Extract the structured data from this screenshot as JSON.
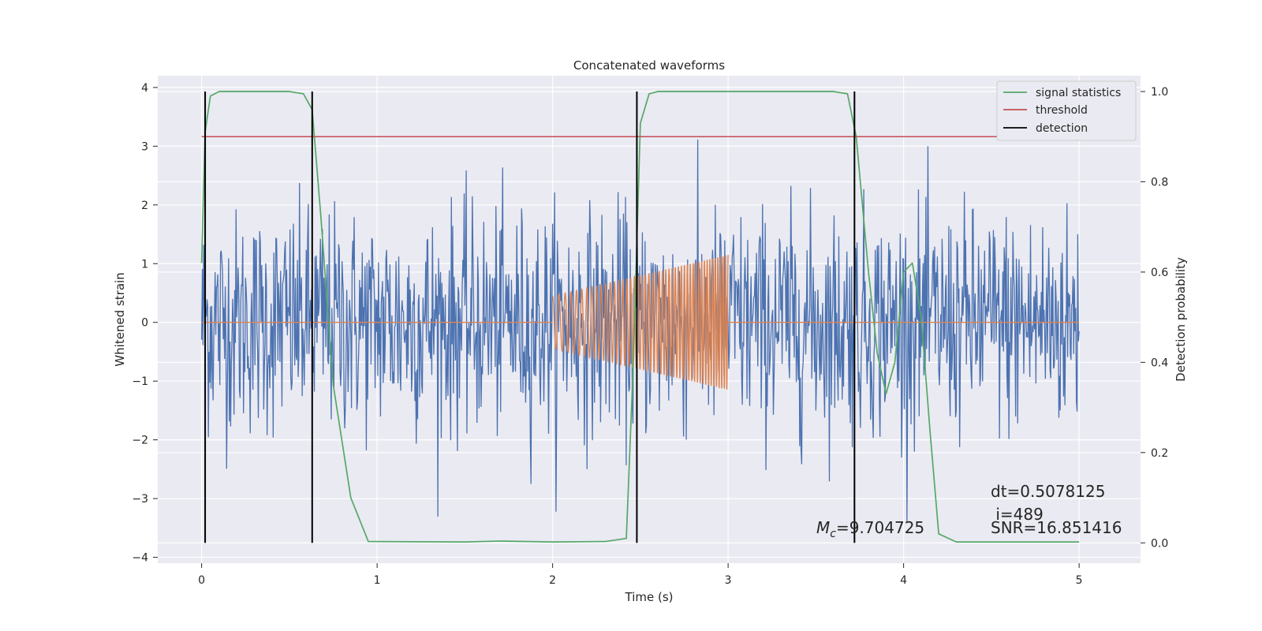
{
  "chart_data": {
    "type": "line",
    "title": "Concatenated waveforms",
    "xlabel": "Time (s)",
    "ylabel": "Whitened strain",
    "y2label": "Detection probability",
    "xlim": [
      -0.25,
      5.35
    ],
    "ylim": [
      -4.1,
      4.2
    ],
    "y2lim": [
      -0.045,
      1.035
    ],
    "x_ticks": [
      0,
      1,
      2,
      3,
      4,
      5
    ],
    "y_ticks": [
      -4,
      -3,
      -2,
      -1,
      0,
      1,
      2,
      3,
      4
    ],
    "y2_ticks": [
      0.0,
      0.2,
      0.4,
      0.6,
      0.8,
      1.0
    ],
    "grid": true,
    "legend_position": "top-right",
    "legend": [
      {
        "label": "signal statistics",
        "color": "#55a868"
      },
      {
        "label": "threshold",
        "color": "#c44e52"
      },
      {
        "label": "detection",
        "color": "#000000"
      }
    ],
    "series": [
      {
        "color": "#4c72b0",
        "axis": "left",
        "description_kind": "whitened noise, spikes up to about ±3.3, 0 to 5 s"
      },
      {
        "color": "#dd8452",
        "axis": "left",
        "description_kind": "injected chirp",
        "segments": [
          {
            "x": [
              0,
              2
            ],
            "y": [
              0,
              0
            ]
          },
          {
            "x": [
              2,
              3
            ],
            "amplitude_start": 0.45,
            "amplitude_end": 1.15,
            "cycles": 48
          },
          {
            "x": [
              3,
              5
            ],
            "y": [
              0,
              0
            ]
          }
        ]
      },
      {
        "name": "signal statistics",
        "color": "#55a868",
        "axis": "right",
        "x": [
          0.0,
          0.02,
          0.05,
          0.1,
          0.2,
          0.5,
          0.58,
          0.63,
          0.68,
          0.75,
          0.85,
          0.95,
          1.5,
          1.7,
          2.0,
          2.3,
          2.42,
          2.46,
          2.5,
          2.55,
          2.6,
          3.0,
          3.6,
          3.68,
          3.73,
          3.8,
          3.85,
          3.9,
          3.95,
          4.0,
          4.05,
          4.1,
          4.15,
          4.2,
          4.3,
          5.0
        ],
        "y": [
          0.62,
          0.91,
          0.99,
          1.0,
          1.0,
          1.0,
          0.995,
          0.96,
          0.72,
          0.35,
          0.1,
          0.003,
          0.002,
          0.004,
          0.002,
          0.003,
          0.01,
          0.4,
          0.93,
          0.995,
          1.0,
          1.0,
          1.0,
          0.995,
          0.9,
          0.6,
          0.42,
          0.33,
          0.4,
          0.6,
          0.62,
          0.5,
          0.25,
          0.02,
          0.002,
          0.002
        ]
      },
      {
        "name": "threshold",
        "color": "#c44e52",
        "axis": "right",
        "x": [
          0,
          5.1
        ],
        "y": [
          0.9,
          0.9
        ]
      }
    ],
    "detections": [
      0.02,
      0.63,
      2.48,
      3.72
    ],
    "annotations": {
      "mc": "=9.704725",
      "dt": "dt=0.5078125",
      "i": " i=489",
      "snr": "SNR=16.851416"
    }
  }
}
